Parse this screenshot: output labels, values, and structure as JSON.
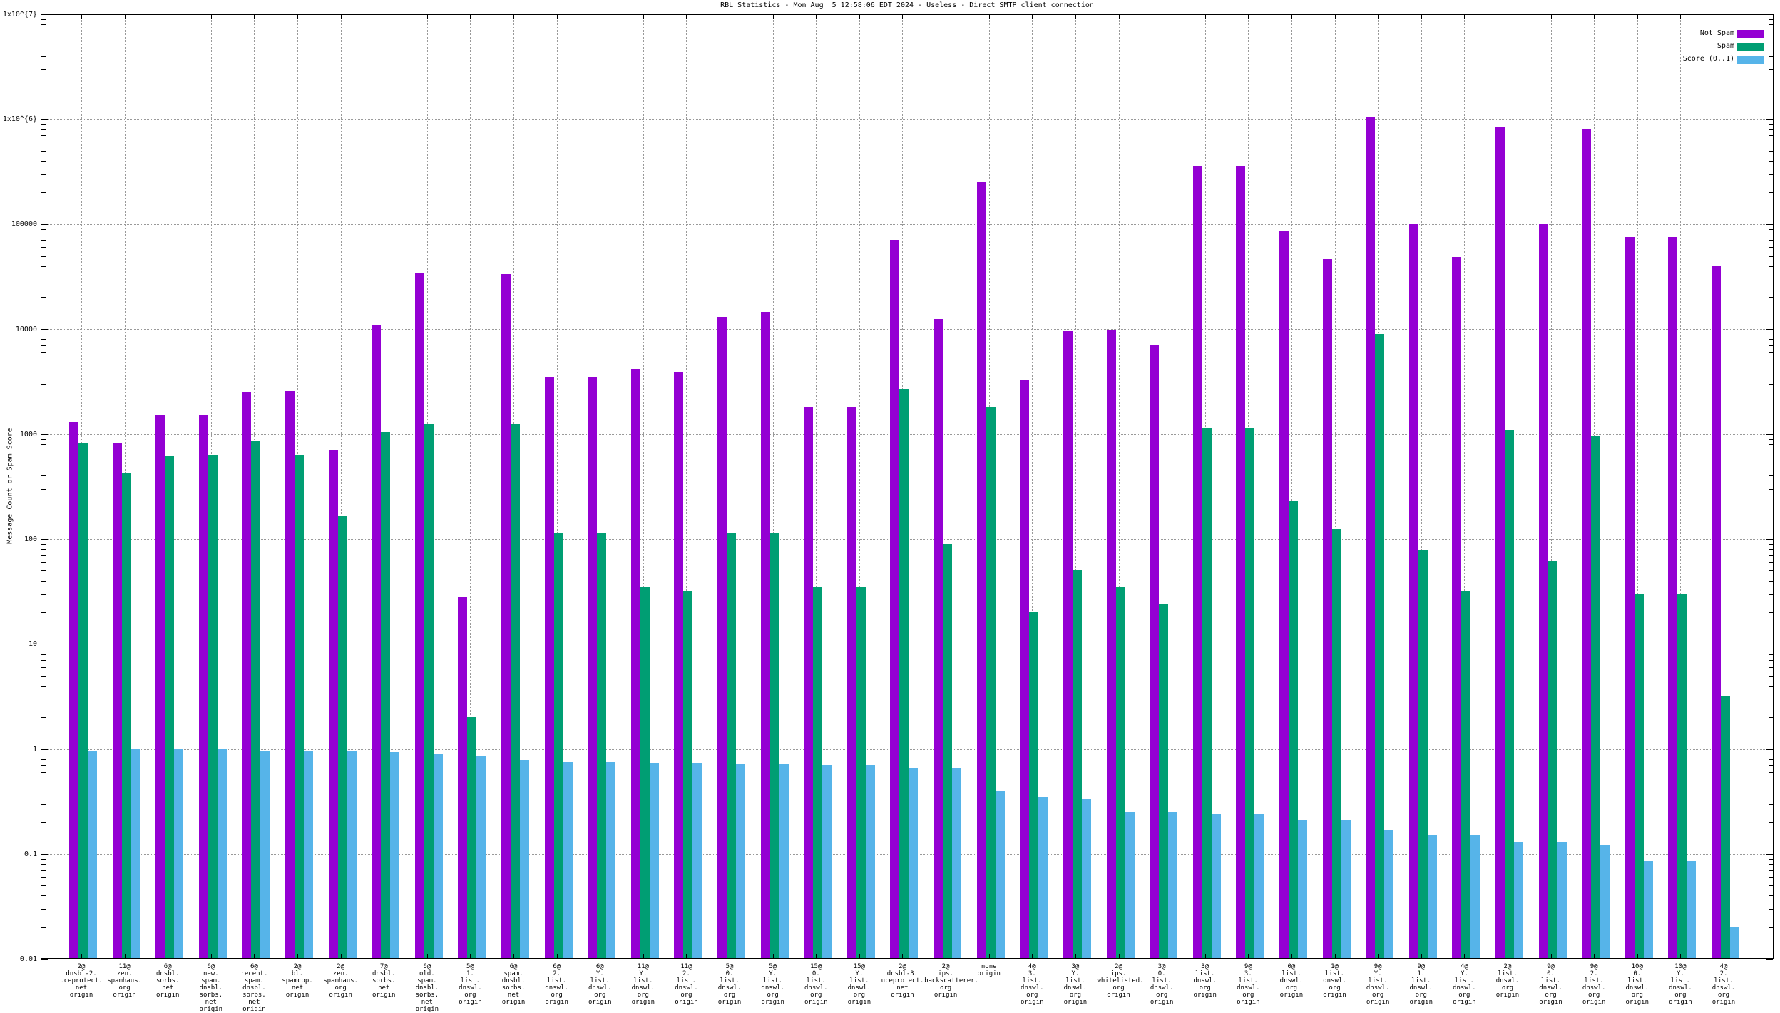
{
  "title": "RBL Statistics - Mon Aug  5 12:58:06 EDT 2024 - Useless - Direct SMTP client connection",
  "axes": {
    "ylabel": "Message Count or Spam Score",
    "ytick_labels": [
      "1x10^{7}",
      "1x10^{6}",
      "100000",
      "10000",
      "1000",
      "100",
      "10",
      "1",
      "0.1",
      "0.01"
    ]
  },
  "legend": [
    {
      "label": "Not Spam",
      "color": "#9400d3"
    },
    {
      "label": "Spam",
      "color": "#009e73"
    },
    {
      "label": "Score (0..1)",
      "color": "#56b4e9"
    }
  ],
  "chart_data": {
    "type": "bar",
    "y_scale": "log",
    "ylim": [
      0.01,
      10000000
    ],
    "grid": true,
    "legend_position": "top-right",
    "title": "RBL Statistics - Mon Aug  5 12:58:06 EDT 2024 - Useless - Direct SMTP client connection",
    "ylabel": "Message Count or Spam Score",
    "categories": [
      [
        "2@",
        "dnsbl-2.",
        "uceprotect.",
        "net",
        "origin"
      ],
      [
        "11@",
        "zen.",
        "spamhaus.",
        "org",
        "origin"
      ],
      [
        "6@",
        "dnsbl.",
        "sorbs.",
        "net",
        "origin"
      ],
      [
        "6@",
        "new.",
        "spam.",
        "dnsbl.",
        "sorbs.",
        "net",
        "origin"
      ],
      [
        "6@",
        "recent.",
        "spam.",
        "dnsbl.",
        "sorbs.",
        "net",
        "origin"
      ],
      [
        "2@",
        "bl.",
        "spamcop.",
        "net",
        "origin"
      ],
      [
        "2@",
        "zen.",
        "spamhaus.",
        "org",
        "origin"
      ],
      [
        "7@",
        "dnsbl.",
        "sorbs.",
        "net",
        "origin"
      ],
      [
        "6@",
        "old.",
        "spam.",
        "dnsbl.",
        "sorbs.",
        "net",
        "origin"
      ],
      [
        "5@",
        "1.",
        "list.",
        "dnswl.",
        "org",
        "origin"
      ],
      [
        "6@",
        "spam.",
        "dnsbl.",
        "sorbs.",
        "net",
        "origin"
      ],
      [
        "6@",
        "2.",
        "list.",
        "dnswl.",
        "org",
        "origin"
      ],
      [
        "6@",
        "Y.",
        "list.",
        "dnswl.",
        "org",
        "origin"
      ],
      [
        "11@",
        "Y.",
        "list.",
        "dnswl.",
        "org",
        "origin"
      ],
      [
        "11@",
        "2.",
        "list.",
        "dnswl.",
        "org",
        "origin"
      ],
      [
        "5@",
        "0.",
        "list.",
        "dnswl.",
        "org",
        "origin"
      ],
      [
        "5@",
        "Y.",
        "list.",
        "dnswl.",
        "org",
        "origin"
      ],
      [
        "15@",
        "0.",
        "list.",
        "dnswl.",
        "org",
        "origin"
      ],
      [
        "15@",
        "Y.",
        "list.",
        "dnswl.",
        "org",
        "origin"
      ],
      [
        "2@",
        "dnsbl-3.",
        "uceprotect.",
        "net",
        "origin"
      ],
      [
        "2@",
        "ips.",
        "backscatterer.",
        "org",
        "origin"
      ],
      [
        "none",
        "origin"
      ],
      [
        "4@",
        "3.",
        "list.",
        "dnswl.",
        "org",
        "origin"
      ],
      [
        "3@",
        "Y.",
        "list.",
        "dnswl.",
        "org",
        "origin"
      ],
      [
        "2@",
        "ips.",
        "whitelisted.",
        "org",
        "origin"
      ],
      [
        "3@",
        "0.",
        "list.",
        "dnswl.",
        "org",
        "origin"
      ],
      [
        "3@",
        "list.",
        "dnswl.",
        "org",
        "origin"
      ],
      [
        "9@",
        "3.",
        "list.",
        "dnswl.",
        "org",
        "origin"
      ],
      [
        "0@",
        "list.",
        "dnswl.",
        "org",
        "origin"
      ],
      [
        "1@",
        "list.",
        "dnswl.",
        "org",
        "origin"
      ],
      [
        "9@",
        "Y.",
        "list.",
        "dnswl.",
        "org",
        "origin"
      ],
      [
        "9@",
        "1.",
        "list.",
        "dnswl.",
        "org",
        "origin"
      ],
      [
        "4@",
        "Y.",
        "list.",
        "dnswl.",
        "org",
        "origin"
      ],
      [
        "2@",
        "list.",
        "dnswl.",
        "org",
        "origin"
      ],
      [
        "9@",
        "0.",
        "list.",
        "dnswl.",
        "org",
        "origin"
      ],
      [
        "9@",
        "2.",
        "list.",
        "dnswl.",
        "org",
        "origin"
      ],
      [
        "10@",
        "0.",
        "list.",
        "dnswl.",
        "org",
        "origin"
      ],
      [
        "10@",
        "Y.",
        "list.",
        "dnswl.",
        "org",
        "origin"
      ],
      [
        "4@",
        "2.",
        "list.",
        "dnswl.",
        "org",
        "origin"
      ]
    ],
    "series": [
      {
        "name": "Not Spam",
        "color": "#9400d3",
        "values": [
          1300,
          815,
          1520,
          1520,
          2500,
          2550,
          710,
          11000,
          34000,
          28,
          33000,
          3500,
          3500,
          4200,
          3900,
          13000,
          14500,
          1800,
          1800,
          70000,
          12500,
          250000,
          3300,
          9500,
          9800,
          7000,
          360000,
          360000,
          86000,
          46000,
          1050000,
          100000,
          48000,
          850000,
          100000,
          800000,
          75000,
          75000,
          40000
        ]
      },
      {
        "name": "Spam",
        "color": "#009e73",
        "values": [
          820,
          424,
          627,
          630,
          860,
          630,
          165,
          1050,
          1250,
          2,
          1250,
          115,
          115,
          35,
          32,
          115,
          115,
          35,
          35,
          2700,
          90,
          1800,
          20,
          50,
          35,
          24,
          1150,
          1150,
          230,
          125,
          9000,
          78,
          32,
          1090,
          62,
          950,
          30,
          30,
          3.2
        ]
      },
      {
        "name": "Score (0..1)",
        "color": "#56b4e9",
        "values": [
          0.97,
          1.0,
          1.0,
          1.0,
          0.97,
          0.97,
          0.97,
          0.93,
          0.9,
          0.85,
          0.78,
          0.75,
          0.75,
          0.73,
          0.73,
          0.72,
          0.72,
          0.7,
          0.7,
          0.66,
          0.65,
          0.4,
          0.35,
          0.33,
          0.25,
          0.25,
          0.24,
          0.24,
          0.21,
          0.21,
          0.17,
          0.15,
          0.15,
          0.13,
          0.13,
          0.12,
          0.085,
          0.085,
          0.02
        ]
      }
    ]
  }
}
